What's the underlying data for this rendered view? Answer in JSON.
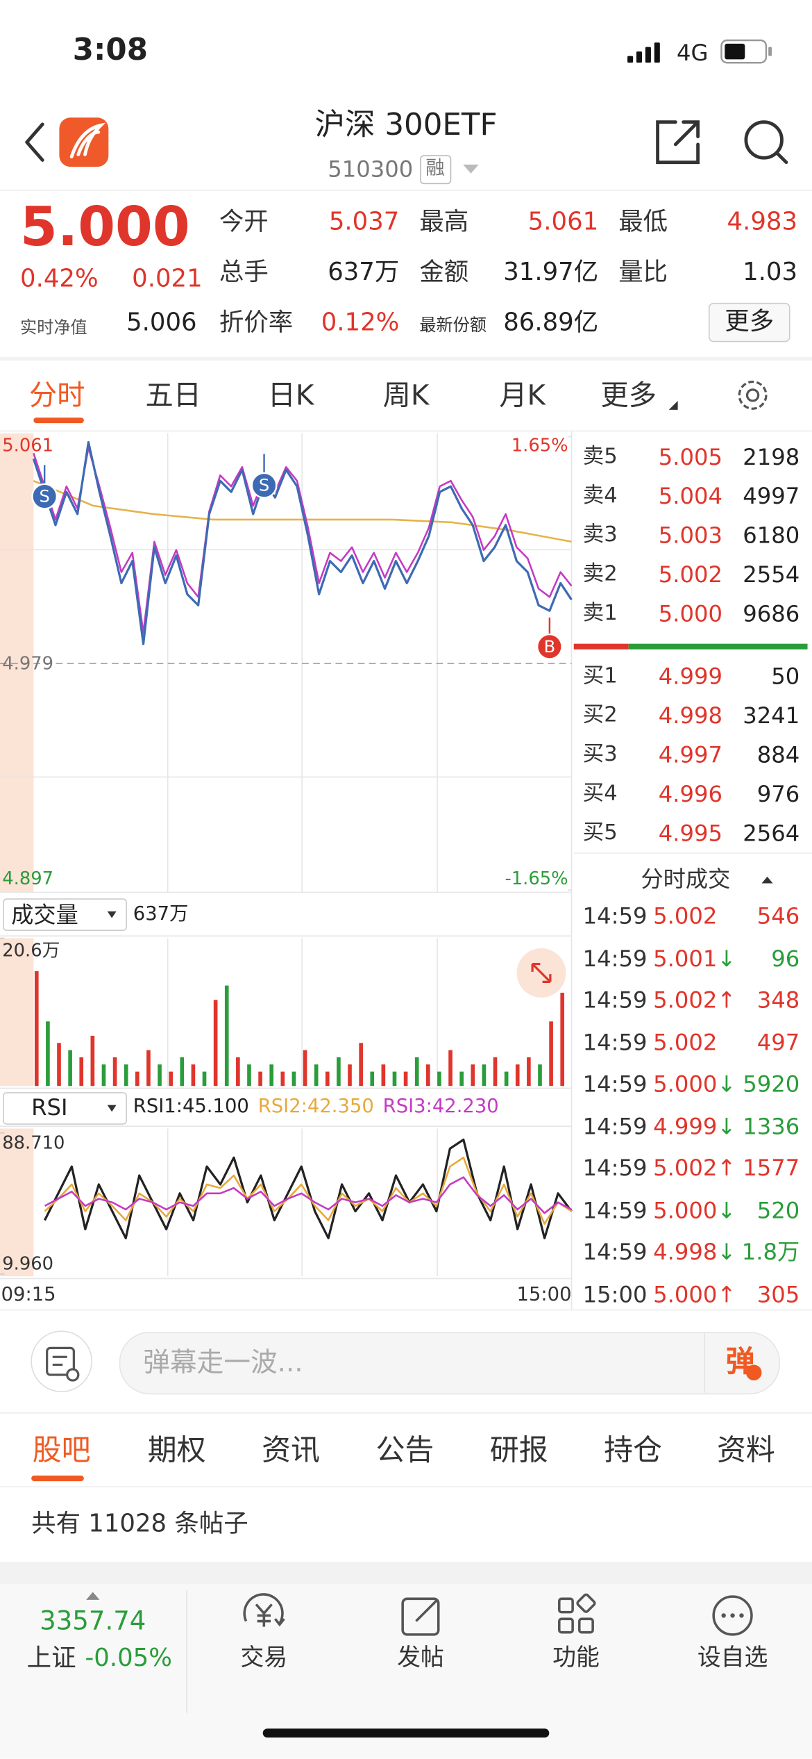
{
  "status_bar": {
    "time": "3:08",
    "network": "4G"
  },
  "header": {
    "title": "沪深 300ETF",
    "code": "510300",
    "badge": "融"
  },
  "quote": {
    "price": "5.000",
    "change_pct": "0.42%",
    "change": "0.021",
    "nav_label": "实时净值",
    "nav": "5.006",
    "fields": [
      {
        "label": "今开",
        "value": "5.037"
      },
      {
        "label": "最高",
        "value": "5.061"
      },
      {
        "label": "最低",
        "value": "4.983"
      },
      {
        "label": "总手",
        "value": "637万"
      },
      {
        "label": "金额",
        "value": "31.97亿"
      },
      {
        "label": "量比",
        "value": "1.03"
      },
      {
        "label": "折价率",
        "value": "0.12%"
      },
      {
        "label": "最新份额",
        "value": "86.89亿"
      }
    ],
    "more": "更多"
  },
  "chart_tabs": [
    "分时",
    "五日",
    "日K",
    "周K",
    "月K",
    "更多"
  ],
  "chart_data": [
    {
      "type": "line",
      "ylim": [
        4.897,
        5.061
      ],
      "yticks": [
        5.061,
        4.979,
        4.897
      ],
      "y2lim": [
        -1.65,
        1.65
      ],
      "y2ticks": [
        {
          "value": 1.65,
          "label": "1.65%"
        },
        {
          "value": -1.65,
          "label": "-1.65%"
        }
      ],
      "series": [
        {
          "color": "#3d6bb3",
          "values": [
            5.053,
            5.041,
            5.029,
            5.041,
            5.033,
            5.059,
            5.041,
            5.025,
            5.008,
            5.016,
            4.986,
            5.021,
            5.008,
            5.018,
            5.004,
            5.0,
            5.033,
            5.045,
            5.041,
            5.049,
            5.033,
            5.045,
            5.039,
            5.049,
            5.043,
            5.025,
            5.004,
            5.016,
            5.012,
            5.018,
            5.008,
            5.016,
            5.006,
            5.016,
            5.008,
            5.016,
            5.025,
            5.041,
            5.043,
            5.035,
            5.029,
            5.016,
            5.021,
            5.029,
            5.016,
            5.012,
            5.0,
            4.998,
            5.008,
            5.002
          ]
        },
        {
          "color": "#c43ac4",
          "values": [
            5.055,
            5.043,
            5.031,
            5.043,
            5.035,
            5.057,
            5.043,
            5.028,
            5.012,
            5.019,
            4.99,
            5.023,
            5.011,
            5.02,
            5.008,
            5.003,
            5.034,
            5.047,
            5.043,
            5.05,
            5.036,
            5.046,
            5.041,
            5.05,
            5.045,
            5.028,
            5.008,
            5.019,
            5.016,
            5.021,
            5.012,
            5.019,
            5.01,
            5.019,
            5.012,
            5.019,
            5.028,
            5.043,
            5.045,
            5.038,
            5.032,
            5.02,
            5.025,
            5.033,
            5.021,
            5.017,
            5.006,
            5.003,
            5.012,
            5.007
          ]
        },
        {
          "color": "#e6b24a",
          "values": [
            5.045,
            5.036,
            5.033,
            5.031,
            5.031,
            5.031,
            5.031,
            5.03,
            5.027,
            5.023
          ]
        }
      ],
      "annotations": [
        {
          "text": "S",
          "index": 1,
          "color": "#3d6bb3"
        },
        {
          "text": "S",
          "index": 21,
          "color": "#3d6bb3"
        },
        {
          "text": "B",
          "index": 47,
          "color": "#e0352b"
        }
      ]
    },
    {
      "type": "bar",
      "label": "成交量",
      "total": "637万",
      "ylim": [
        0,
        20.6
      ],
      "yticks": [
        {
          "value": 20.6,
          "label": "20.6万"
        }
      ],
      "series": [
        {
          "color": "#e0352b",
          "values": [
            16,
            null,
            6,
            null,
            4,
            7,
            null,
            4,
            null,
            2,
            5,
            null,
            2,
            null,
            3,
            null,
            12,
            null,
            4,
            null,
            2,
            null,
            2,
            null,
            5,
            null,
            2,
            null,
            3,
            6,
            null,
            3,
            null,
            2,
            null,
            3,
            null,
            5,
            null,
            3,
            null,
            4,
            null,
            3,
            4,
            null,
            9,
            13
          ]
        },
        {
          "color": "#2a9d3a",
          "values": [
            null,
            9,
            null,
            5,
            null,
            null,
            3,
            null,
            3,
            null,
            null,
            3,
            null,
            4,
            null,
            2,
            null,
            14,
            null,
            3,
            null,
            3,
            null,
            2,
            null,
            3,
            null,
            4,
            null,
            null,
            2,
            null,
            2,
            null,
            4,
            null,
            2,
            null,
            2,
            null,
            3,
            null,
            2,
            null,
            null,
            3,
            null,
            null
          ]
        }
      ]
    },
    {
      "type": "line",
      "label": "RSI",
      "ylim": [
        9.96,
        88.71
      ],
      "yticks": [
        {
          "value": 88.71,
          "label": "88.710"
        },
        {
          "value": 9.96,
          "label": "9.960"
        }
      ],
      "x_labels": [
        "09:15",
        "15:00"
      ],
      "series": [
        {
          "name": "RSI1:45.100",
          "color": "#222222",
          "values": [
            40,
            55,
            70,
            35,
            60,
            45,
            30,
            65,
            50,
            35,
            55,
            40,
            70,
            60,
            75,
            50,
            65,
            40,
            55,
            70,
            45,
            30,
            60,
            45,
            55,
            40,
            65,
            50,
            60,
            45,
            80,
            85,
            55,
            40,
            70,
            35,
            60,
            30,
            55,
            45
          ]
        },
        {
          "name": "RSI2:42.350",
          "color": "#e8a93a",
          "values": [
            45,
            52,
            60,
            45,
            55,
            48,
            40,
            55,
            50,
            42,
            52,
            45,
            60,
            58,
            65,
            52,
            60,
            45,
            52,
            60,
            48,
            40,
            55,
            48,
            52,
            45,
            58,
            50,
            55,
            48,
            70,
            75,
            55,
            45,
            60,
            42,
            55,
            38,
            50,
            45
          ]
        },
        {
          "name": "RSI3:42.230",
          "color": "#c43ac4",
          "values": [
            48,
            52,
            56,
            48,
            52,
            50,
            46,
            52,
            50,
            46,
            50,
            48,
            55,
            55,
            58,
            52,
            56,
            48,
            52,
            55,
            50,
            46,
            52,
            50,
            52,
            48,
            54,
            50,
            52,
            50,
            60,
            64,
            54,
            48,
            54,
            46,
            52,
            44,
            50,
            46
          ]
        }
      ]
    }
  ],
  "order_book": {
    "sell": [
      {
        "label": "卖5",
        "price": "5.005",
        "volume": "2198"
      },
      {
        "label": "卖4",
        "price": "5.004",
        "volume": "4997"
      },
      {
        "label": "卖3",
        "price": "5.003",
        "volume": "6180"
      },
      {
        "label": "卖2",
        "price": "5.002",
        "volume": "2554"
      },
      {
        "label": "卖1",
        "price": "5.000",
        "volume": "9686"
      }
    ],
    "buy": [
      {
        "label": "买1",
        "price": "4.999",
        "volume": "50"
      },
      {
        "label": "买2",
        "price": "4.998",
        "volume": "3241"
      },
      {
        "label": "买3",
        "price": "4.997",
        "volume": "884"
      },
      {
        "label": "买4",
        "price": "4.996",
        "volume": "976"
      },
      {
        "label": "买5",
        "price": "4.995",
        "volume": "2564"
      }
    ]
  },
  "trades": {
    "title": "分时成交",
    "rows": [
      {
        "time": "14:59",
        "price": "5.002",
        "volume": "546",
        "color": "#e0352b"
      },
      {
        "time": "14:59",
        "price": "5.001",
        "arrow": "↓",
        "volume": "96",
        "color": "#2a9d3a"
      },
      {
        "time": "14:59",
        "price": "5.002",
        "arrow": "↑",
        "volume": "348",
        "color": "#e0352b"
      },
      {
        "time": "14:59",
        "price": "5.002",
        "volume": "497",
        "color": "#e0352b"
      },
      {
        "time": "14:59",
        "price": "5.000",
        "arrow": "↓",
        "volume": "5920",
        "color": "#2a9d3a"
      },
      {
        "time": "14:59",
        "price": "4.999",
        "arrow": "↓",
        "volume": "1336",
        "color": "#2a9d3a"
      },
      {
        "time": "14:59",
        "price": "5.002",
        "arrow": "↑",
        "volume": "1577",
        "color": "#e0352b"
      },
      {
        "time": "14:59",
        "price": "5.000",
        "arrow": "↓",
        "volume": "520",
        "color": "#2a9d3a"
      },
      {
        "time": "14:59",
        "price": "4.998",
        "arrow": "↓",
        "volume": "1.8万",
        "color": "#2a9d3a"
      },
      {
        "time": "15:00",
        "price": "5.000",
        "arrow": "↑",
        "volume": "305",
        "color": "#e0352b"
      }
    ]
  },
  "comment": {
    "placeholder": "弹幕走一波...",
    "button": "弹"
  },
  "tabs": [
    "股吧",
    "期权",
    "资讯",
    "公告",
    "研报",
    "持仓",
    "资料"
  ],
  "post_count": "共有 11028 条帖子",
  "index": {
    "value": "3357.74",
    "name": "上证",
    "change": "-0.05%"
  },
  "nav": [
    "交易",
    "发帖",
    "功能",
    "设自选"
  ]
}
